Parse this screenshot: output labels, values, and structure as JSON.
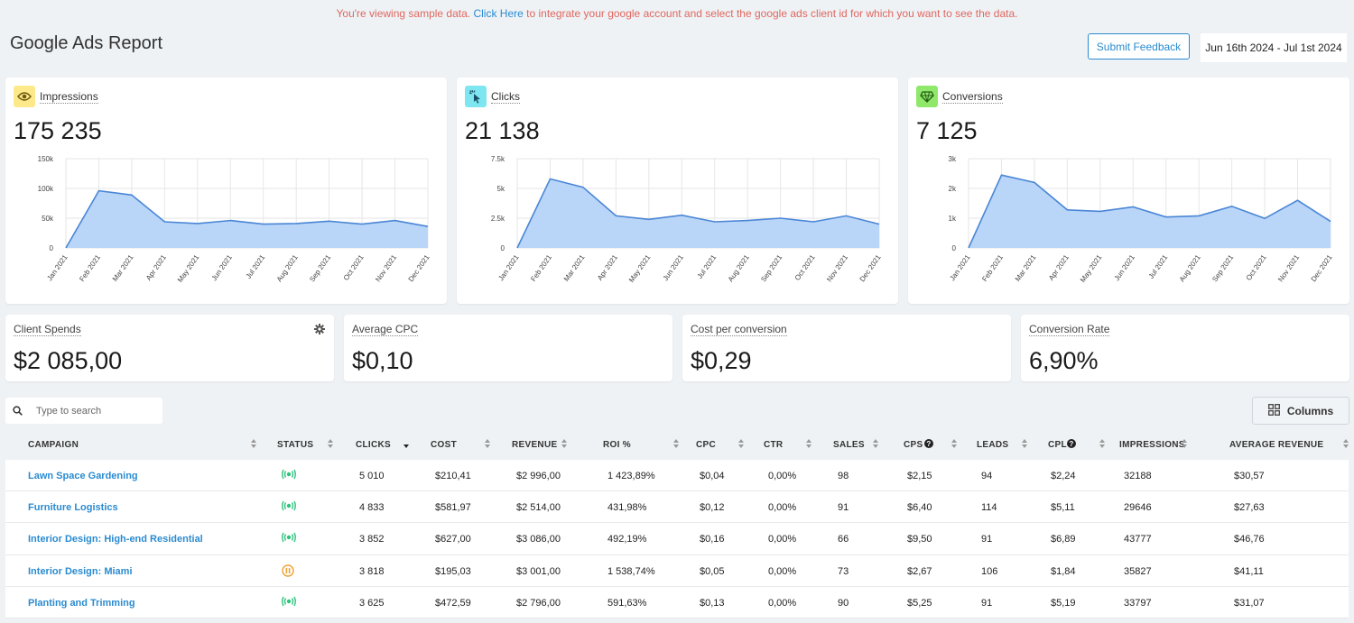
{
  "notice": {
    "pre": "You're viewing sample data.",
    "link": "Click Here",
    "post": "to integrate your google account and select the google ads client id for which you want to see the data."
  },
  "header": {
    "title": "Google Ads Report",
    "feedback_label": "Submit Feedback",
    "date_range": "Jun 16th 2024 - Jul 1st 2024"
  },
  "colors": {
    "accent": "#2a8bd0",
    "notice": "#e0675f",
    "impressions_badge": "#fde98a",
    "clicks_badge": "#7ee6f0",
    "conversions_badge": "#8fe86a",
    "active": "#2ec27e",
    "paused": "#f0a030",
    "area_fill": "#b9d5f7",
    "line": "#4a86d6"
  },
  "months": [
    "Jan 2021",
    "Feb 2021",
    "Mar 2021",
    "Apr 2021",
    "May 2021",
    "Jun 2021",
    "Jul 2021",
    "Aug 2021",
    "Sep 2021",
    "Oct 2021",
    "Nov 2021",
    "Dec 2021"
  ],
  "cards": [
    {
      "label": "Impressions",
      "value": "175 235",
      "icon": "eye-icon"
    },
    {
      "label": "Clicks",
      "value": "21 138",
      "icon": "cursor-click-icon"
    },
    {
      "label": "Conversions",
      "value": "7 125",
      "icon": "diamond-icon"
    }
  ],
  "chart_data": [
    {
      "type": "area",
      "title": "Impressions",
      "x": [
        "Jan 2021",
        "Feb 2021",
        "Mar 2021",
        "Apr 2021",
        "May 2021",
        "Jun 2021",
        "Jul 2021",
        "Aug 2021",
        "Sep 2021",
        "Oct 2021",
        "Nov 2021",
        "Dec 2021"
      ],
      "values": [
        0,
        96000,
        89000,
        44000,
        41000,
        46000,
        40000,
        41000,
        45000,
        40000,
        46000,
        36000
      ],
      "ylim": [
        0,
        150000
      ],
      "yticks": [
        "0",
        "50k",
        "100k",
        "150k"
      ],
      "grid": true
    },
    {
      "type": "area",
      "title": "Clicks",
      "x": [
        "Jan 2021",
        "Feb 2021",
        "Mar 2021",
        "Apr 2021",
        "May 2021",
        "Jun 2021",
        "Jul 2021",
        "Aug 2021",
        "Sep 2021",
        "Oct 2021",
        "Nov 2021",
        "Dec 2021"
      ],
      "values": [
        0,
        5800,
        5100,
        2700,
        2400,
        2750,
        2200,
        2300,
        2500,
        2200,
        2700,
        2000
      ],
      "ylim": [
        0,
        7500
      ],
      "yticks": [
        "0",
        "2.5k",
        "5k",
        "7.5k"
      ],
      "grid": true
    },
    {
      "type": "area",
      "title": "Conversions",
      "x": [
        "Jan 2021",
        "Feb 2021",
        "Mar 2021",
        "Apr 2021",
        "May 2021",
        "Jun 2021",
        "Jul 2021",
        "Aug 2021",
        "Sep 2021",
        "Oct 2021",
        "Nov 2021",
        "Dec 2021"
      ],
      "values": [
        0,
        2450,
        2200,
        1280,
        1230,
        1380,
        1040,
        1080,
        1400,
        990,
        1600,
        890
      ],
      "ylim": [
        0,
        3000
      ],
      "yticks": [
        "0",
        "1k",
        "2k",
        "3k"
      ],
      "grid": true
    }
  ],
  "stats": [
    {
      "label": "Client Spends",
      "value": "$2 085,00",
      "has_settings": true
    },
    {
      "label": "Average CPC",
      "value": "$0,10"
    },
    {
      "label": "Cost per conversion",
      "value": "$0,29"
    },
    {
      "label": "Conversion Rate",
      "value": "6,90%"
    }
  ],
  "search": {
    "placeholder": "Type to search"
  },
  "columns_label": "Columns",
  "table": {
    "headers": [
      "CAMPAIGN",
      "STATUS",
      "CLICKS",
      "COST",
      "REVENUE",
      "ROI %",
      "CPC",
      "CTR",
      "SALES",
      "CPS",
      "LEADS",
      "CPL",
      "IMPRESSIONS",
      "AVERAGE REVENUE"
    ],
    "rows": [
      {
        "campaign": "Lawn Space Gardening",
        "status": "active",
        "clicks": "5 010",
        "cost": "$210,41",
        "revenue": "$2 996,00",
        "roi": "1 423,89%",
        "cpc": "$0,04",
        "ctr": "0,00%",
        "sales": "98",
        "cps": "$2,15",
        "leads": "94",
        "cpl": "$2,24",
        "impressions": "32188",
        "avg_revenue": "$30,57"
      },
      {
        "campaign": "Furniture Logistics",
        "status": "active",
        "clicks": "4 833",
        "cost": "$581,97",
        "revenue": "$2 514,00",
        "roi": "431,98%",
        "cpc": "$0,12",
        "ctr": "0,00%",
        "sales": "91",
        "cps": "$6,40",
        "leads": "114",
        "cpl": "$5,11",
        "impressions": "29646",
        "avg_revenue": "$27,63"
      },
      {
        "campaign": "Interior Design: High-end Residential",
        "status": "active",
        "clicks": "3 852",
        "cost": "$627,00",
        "revenue": "$3 086,00",
        "roi": "492,19%",
        "cpc": "$0,16",
        "ctr": "0,00%",
        "sales": "66",
        "cps": "$9,50",
        "leads": "91",
        "cpl": "$6,89",
        "impressions": "43777",
        "avg_revenue": "$46,76"
      },
      {
        "campaign": "Interior Design: Miami",
        "status": "paused",
        "clicks": "3 818",
        "cost": "$195,03",
        "revenue": "$3 001,00",
        "roi": "1 538,74%",
        "cpc": "$0,05",
        "ctr": "0,00%",
        "sales": "73",
        "cps": "$2,67",
        "leads": "106",
        "cpl": "$1,84",
        "impressions": "35827",
        "avg_revenue": "$41,11"
      },
      {
        "campaign": "Planting and Trimming",
        "status": "active",
        "clicks": "3 625",
        "cost": "$472,59",
        "revenue": "$2 796,00",
        "roi": "591,63%",
        "cpc": "$0,13",
        "ctr": "0,00%",
        "sales": "90",
        "cps": "$5,25",
        "leads": "91",
        "cpl": "$5,19",
        "impressions": "33797",
        "avg_revenue": "$31,07"
      }
    ]
  }
}
